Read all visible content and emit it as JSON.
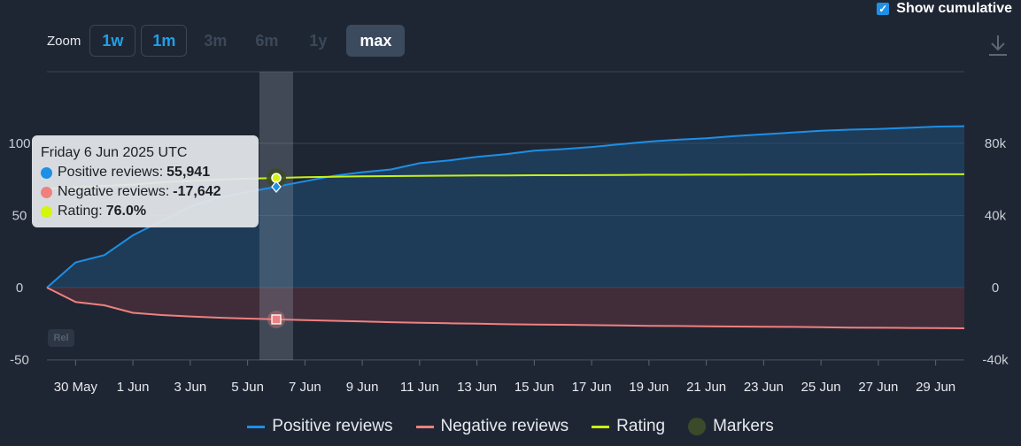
{
  "zoom": {
    "label": "Zoom",
    "buttons": [
      {
        "label": "1w",
        "state": "enabled"
      },
      {
        "label": "1m",
        "state": "enabled"
      },
      {
        "label": "3m",
        "state": "disabled"
      },
      {
        "label": "6m",
        "state": "disabled"
      },
      {
        "label": "1y",
        "state": "disabled"
      },
      {
        "label": "max",
        "state": "active"
      }
    ]
  },
  "toggle": {
    "label": "Show cumulative",
    "checked": true
  },
  "download_icon": "download-icon",
  "rel_badge": "Rel",
  "tooltip": {
    "date": "Friday 6 Jun 2025 UTC",
    "rows": [
      {
        "label": "Positive reviews:",
        "value": "55,941",
        "color": "#1d8fe6"
      },
      {
        "label": "Negative reviews:",
        "value": "-17,642",
        "color": "#f08080"
      },
      {
        "label": "Rating:",
        "value": "76.0%",
        "color": "#d4f50e"
      }
    ]
  },
  "legend": [
    {
      "label": "Positive reviews",
      "color": "#1d8fe6",
      "kind": "line"
    },
    {
      "label": "Negative reviews",
      "color": "#f08080",
      "kind": "line"
    },
    {
      "label": "Rating",
      "color": "#c8f016",
      "kind": "line"
    },
    {
      "label": "Markers",
      "color": "#3b4a28",
      "kind": "circle"
    }
  ],
  "chart_data": {
    "type": "line",
    "dates": [
      "2025-05-29",
      "2025-05-30",
      "2025-05-31",
      "2025-06-01",
      "2025-06-02",
      "2025-06-03",
      "2025-06-04",
      "2025-06-05",
      "2025-06-06",
      "2025-06-07",
      "2025-06-08",
      "2025-06-09",
      "2025-06-10",
      "2025-06-11",
      "2025-06-12",
      "2025-06-13",
      "2025-06-14",
      "2025-06-15",
      "2025-06-16",
      "2025-06-17",
      "2025-06-18",
      "2025-06-19",
      "2025-06-20",
      "2025-06-21",
      "2025-06-22",
      "2025-06-23",
      "2025-06-24",
      "2025-06-25",
      "2025-06-26",
      "2025-06-27",
      "2025-06-28",
      "2025-06-29",
      "2025-06-30"
    ],
    "x_ticks": [
      "30 May",
      "1 Jun",
      "3 Jun",
      "5 Jun",
      "7 Jun",
      "9 Jun",
      "11 Jun",
      "13 Jun",
      "15 Jun",
      "17 Jun",
      "19 Jun",
      "21 Jun",
      "23 Jun",
      "25 Jun",
      "27 Jun",
      "29 Jun"
    ],
    "left_axis": {
      "ticks": [
        100,
        50,
        0,
        -50
      ],
      "ylim": [
        -50,
        100
      ]
    },
    "right_axis": {
      "ticks": [
        "80k",
        "40k",
        "0",
        "-40k"
      ],
      "ylim": [
        -40000,
        80000
      ]
    },
    "series": [
      {
        "name": "Positive reviews",
        "axis": "right",
        "color": "#1d8fe6",
        "values": [
          0,
          14000,
          18000,
          29000,
          37000,
          45000,
          50000,
          53000,
          55941,
          59000,
          62000,
          64000,
          65500,
          69000,
          70500,
          72500,
          74000,
          76000,
          76800,
          78000,
          79500,
          81000,
          82000,
          82800,
          84000,
          85000,
          86000,
          87000,
          87600,
          88000,
          88600,
          89300,
          89500
        ]
      },
      {
        "name": "Negative reviews",
        "axis": "right",
        "color": "#f08080",
        "values": [
          0,
          -8000,
          -9800,
          -14000,
          -15200,
          -16000,
          -16700,
          -17200,
          -17642,
          -18000,
          -18400,
          -18800,
          -19200,
          -19500,
          -19800,
          -20000,
          -20300,
          -20500,
          -20600,
          -20800,
          -21000,
          -21200,
          -21300,
          -21500,
          -21600,
          -21700,
          -21800,
          -22000,
          -22200,
          -22300,
          -22400,
          -22500,
          -22600
        ]
      },
      {
        "name": "Rating",
        "axis": "left",
        "color": "#c8f016",
        "values": [
          68.5,
          69.5,
          70.5,
          71.5,
          73.0,
          74.0,
          75.0,
          75.5,
          76.0,
          76.5,
          76.9,
          77.1,
          77.3,
          77.5,
          77.6,
          77.7,
          77.8,
          77.9,
          77.9,
          78.0,
          78.1,
          78.2,
          78.2,
          78.3,
          78.3,
          78.4,
          78.4,
          78.4,
          78.4,
          78.5,
          78.5,
          78.6,
          78.6
        ]
      }
    ],
    "highlight_date": "2025-06-06",
    "grid": true
  }
}
